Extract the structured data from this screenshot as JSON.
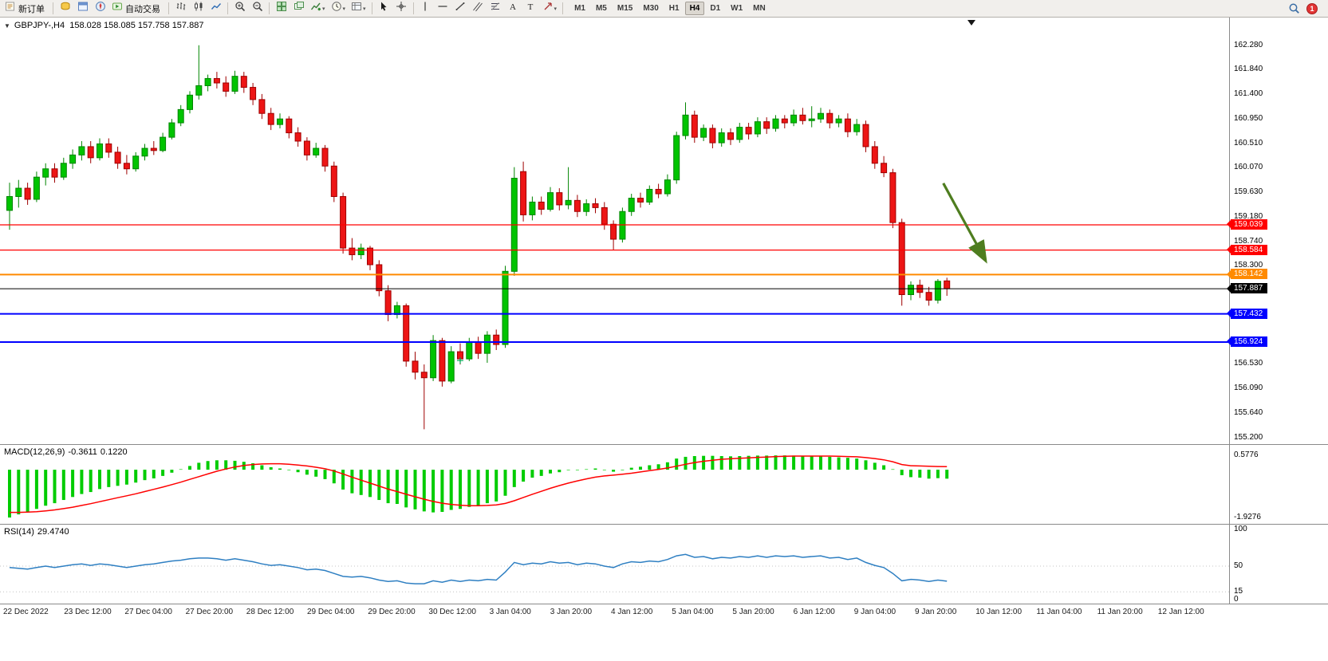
{
  "toolbar": {
    "new_order_label": "新订单",
    "autotrading_label": "自动交易",
    "timeframes": [
      "M1",
      "M5",
      "M15",
      "M30",
      "H1",
      "H4",
      "D1",
      "W1",
      "MN"
    ],
    "active_timeframe": "H4",
    "notification_badge": "1"
  },
  "chart": {
    "symbol_period": "GBPJPY-,H4",
    "ohlc": "158.028 158.085 157.758 157.887"
  },
  "macd": {
    "label": "MACD(12,26,9)",
    "value_main": "-0.3611",
    "value_signal": "0.1220",
    "axis_max": "0.5776",
    "axis_min": "-1.9276"
  },
  "rsi": {
    "label": "RSI(14)",
    "value": "29.4740",
    "axis_labels": [
      "100",
      "50",
      "15",
      "0"
    ]
  },
  "price_axis": {
    "labels": [
      "162.280",
      "161.840",
      "161.400",
      "160.950",
      "160.510",
      "160.070",
      "159.630",
      "159.180",
      "158.740",
      "158.300",
      "156.530",
      "156.090",
      "155.640",
      "155.200"
    ]
  },
  "time_axis": [
    "22 Dec 2022",
    "23 Dec 12:00",
    "27 Dec 04:00",
    "27 Dec 20:00",
    "28 Dec 12:00",
    "29 Dec 04:00",
    "29 Dec 20:00",
    "30 Dec 12:00",
    "3 Jan 04:00",
    "3 Jan 20:00",
    "4 Jan 12:00",
    "5 Jan 04:00",
    "5 Jan 20:00",
    "6 Jan 12:00",
    "9 Jan 04:00",
    "9 Jan 20:00",
    "10 Jan 12:00",
    "11 Jan 04:00",
    "11 Jan 20:00",
    "12 Jan 12:00"
  ],
  "chart_data": [
    {
      "type": "candlestick",
      "symbol": "GBPJPY-",
      "period": "H4",
      "last_ohlc": {
        "open": 158.028,
        "high": 158.085,
        "low": 157.758,
        "close": 157.887
      },
      "ylim": [
        155.2,
        162.78
      ],
      "colors": {
        "bull": "#00C400",
        "bull_border": "#008500",
        "bear": "#ED1515",
        "bear_border": "#9E0000"
      },
      "candles": [
        [
          159.3,
          159.8,
          158.95,
          159.55
        ],
        [
          159.55,
          159.85,
          159.35,
          159.7
        ],
        [
          159.7,
          159.8,
          159.4,
          159.5
        ],
        [
          159.5,
          160.0,
          159.45,
          159.9
        ],
        [
          159.9,
          160.15,
          159.75,
          160.05
        ],
        [
          160.05,
          160.15,
          159.8,
          159.9
        ],
        [
          159.9,
          160.25,
          159.85,
          160.15
        ],
        [
          160.15,
          160.4,
          160.05,
          160.3
        ],
        [
          160.3,
          160.55,
          160.2,
          160.45
        ],
        [
          160.45,
          160.55,
          160.15,
          160.25
        ],
        [
          160.25,
          160.6,
          160.2,
          160.5
        ],
        [
          160.5,
          160.6,
          160.25,
          160.35
        ],
        [
          160.35,
          160.45,
          160.05,
          160.15
        ],
        [
          160.15,
          160.3,
          159.95,
          160.05
        ],
        [
          160.05,
          160.35,
          160.0,
          160.28
        ],
        [
          160.28,
          160.5,
          160.2,
          160.42
        ],
        [
          160.42,
          160.55,
          160.3,
          160.38
        ],
        [
          160.38,
          160.7,
          160.35,
          160.62
        ],
        [
          160.62,
          160.95,
          160.58,
          160.88
        ],
        [
          160.88,
          161.2,
          160.82,
          161.12
        ],
        [
          161.12,
          161.45,
          161.05,
          161.38
        ],
        [
          161.38,
          162.28,
          161.3,
          161.55
        ],
        [
          161.55,
          161.75,
          161.45,
          161.68
        ],
        [
          161.68,
          161.8,
          161.5,
          161.6
        ],
        [
          161.6,
          161.72,
          161.35,
          161.45
        ],
        [
          161.45,
          161.82,
          161.4,
          161.72
        ],
        [
          161.72,
          161.8,
          161.42,
          161.52
        ],
        [
          161.52,
          161.6,
          161.2,
          161.3
        ],
        [
          161.3,
          161.4,
          160.95,
          161.05
        ],
        [
          161.05,
          161.15,
          160.75,
          160.85
        ],
        [
          160.85,
          161.05,
          160.78,
          160.95
        ],
        [
          160.95,
          161.0,
          160.6,
          160.7
        ],
        [
          160.7,
          160.8,
          160.45,
          160.55
        ],
        [
          160.55,
          160.62,
          160.2,
          160.3
        ],
        [
          160.3,
          160.52,
          160.25,
          160.42
        ],
        [
          160.42,
          160.48,
          160.0,
          160.1
        ],
        [
          160.1,
          160.18,
          159.45,
          159.55
        ],
        [
          159.55,
          159.62,
          158.52,
          158.62
        ],
        [
          158.62,
          158.8,
          158.4,
          158.5
        ],
        [
          158.5,
          158.7,
          158.42,
          158.62
        ],
        [
          158.62,
          158.66,
          158.22,
          158.32
        ],
        [
          158.32,
          158.4,
          157.75,
          157.85
        ],
        [
          157.85,
          157.95,
          157.3,
          157.42
        ],
        [
          157.42,
          157.65,
          157.35,
          157.58
        ],
        [
          157.58,
          157.62,
          156.48,
          156.58
        ],
        [
          156.58,
          156.75,
          156.25,
          156.38
        ],
        [
          156.38,
          156.52,
          155.35,
          156.28
        ],
        [
          156.28,
          157.05,
          156.22,
          156.95
        ],
        [
          156.95,
          157.0,
          156.12,
          156.22
        ],
        [
          156.22,
          156.85,
          156.18,
          156.75
        ],
        [
          156.75,
          156.9,
          156.52,
          156.62
        ],
        [
          156.62,
          157.0,
          156.58,
          156.92
        ],
        [
          156.92,
          157.02,
          156.62,
          156.72
        ],
        [
          156.72,
          157.12,
          156.55,
          157.05
        ],
        [
          157.05,
          157.15,
          156.78,
          156.88
        ],
        [
          156.88,
          158.3,
          156.82,
          158.2
        ],
        [
          158.2,
          160.08,
          158.12,
          159.88
        ],
        [
          160.0,
          160.18,
          159.1,
          159.22
        ],
        [
          159.22,
          159.55,
          159.12,
          159.45
        ],
        [
          159.45,
          159.55,
          159.22,
          159.32
        ],
        [
          159.32,
          159.72,
          159.28,
          159.62
        ],
        [
          159.62,
          159.7,
          159.3,
          159.4
        ],
        [
          159.4,
          160.08,
          159.32,
          159.48
        ],
        [
          159.48,
          159.58,
          159.18,
          159.28
        ],
        [
          159.28,
          159.5,
          159.2,
          159.42
        ],
        [
          159.42,
          159.52,
          159.25,
          159.35
        ],
        [
          159.35,
          159.45,
          158.95,
          159.05
        ],
        [
          159.05,
          159.12,
          158.58,
          158.78
        ],
        [
          158.78,
          159.35,
          158.72,
          159.28
        ],
        [
          159.28,
          159.6,
          159.2,
          159.52
        ],
        [
          159.52,
          159.62,
          159.35,
          159.45
        ],
        [
          159.45,
          159.75,
          159.4,
          159.68
        ],
        [
          159.68,
          159.78,
          159.52,
          159.6
        ],
        [
          159.6,
          159.95,
          159.55,
          159.85
        ],
        [
          159.85,
          160.72,
          159.78,
          160.65
        ],
        [
          160.65,
          161.25,
          160.58,
          161.02
        ],
        [
          161.02,
          161.1,
          160.52,
          160.62
        ],
        [
          160.62,
          160.85,
          160.55,
          160.78
        ],
        [
          160.78,
          160.85,
          160.42,
          160.52
        ],
        [
          160.52,
          160.78,
          160.45,
          160.7
        ],
        [
          160.7,
          160.78,
          160.48,
          160.58
        ],
        [
          160.58,
          160.88,
          160.52,
          160.8
        ],
        [
          160.8,
          160.88,
          160.58,
          160.68
        ],
        [
          160.68,
          160.98,
          160.62,
          160.9
        ],
        [
          160.9,
          160.98,
          160.68,
          160.78
        ],
        [
          160.78,
          161.02,
          160.72,
          160.95
        ],
        [
          160.95,
          161.02,
          160.78,
          160.88
        ],
        [
          160.88,
          161.12,
          160.82,
          161.02
        ],
        [
          161.02,
          161.15,
          160.85,
          160.92
        ],
        [
          160.92,
          161.18,
          160.8,
          160.95
        ],
        [
          160.95,
          161.15,
          160.88,
          161.05
        ],
        [
          161.05,
          161.12,
          160.78,
          160.88
        ],
        [
          160.88,
          161.02,
          160.8,
          160.95
        ],
        [
          160.95,
          161.05,
          160.62,
          160.72
        ],
        [
          160.72,
          160.95,
          160.65,
          160.85
        ],
        [
          160.85,
          160.92,
          160.35,
          160.45
        ],
        [
          160.45,
          160.55,
          160.05,
          160.15
        ],
        [
          160.15,
          160.28,
          159.9,
          159.98
        ],
        [
          159.98,
          160.05,
          158.98,
          159.08
        ],
        [
          159.08,
          159.15,
          157.58,
          157.78
        ],
        [
          157.78,
          158.02,
          157.68,
          157.95
        ],
        [
          157.95,
          158.05,
          157.72,
          157.82
        ],
        [
          157.82,
          157.92,
          157.58,
          157.68
        ],
        [
          157.68,
          158.06,
          157.62,
          158.02
        ],
        [
          158.028,
          158.085,
          157.758,
          157.887
        ]
      ],
      "hlines": [
        {
          "price": 159.039,
          "color": "#FF0000",
          "lw": 1.3
        },
        {
          "price": 158.584,
          "color": "#FF0000",
          "lw": 1.3
        },
        {
          "price": 158.142,
          "color": "#FF8A00",
          "lw": 2
        },
        {
          "price": 157.887,
          "color": "#000000",
          "lw": 1
        },
        {
          "price": 157.432,
          "color": "#0000FF",
          "lw": 2
        },
        {
          "price": 156.924,
          "color": "#0000FF",
          "lw": 2
        }
      ],
      "arrow": {
        "from_bar": 103.6,
        "from_price": 159.79,
        "to_bar": 108.2,
        "to_price": 158.42,
        "color": "#4E7D1F"
      },
      "marker": {
        "bar": 50,
        "price": 156.59,
        "color": "#00A550"
      }
    },
    {
      "type": "bar",
      "name": "MACD(12,26,9)",
      "ylim": [
        -1.9276,
        0.5776
      ],
      "colors": {
        "histogram": "#00CC00",
        "signal": "#FF0000"
      },
      "values": [
        -1.9276,
        -1.8,
        -1.7,
        -1.58,
        -1.45,
        -1.35,
        -1.22,
        -1.1,
        -0.98,
        -0.9,
        -0.78,
        -0.7,
        -0.65,
        -0.6,
        -0.52,
        -0.42,
        -0.35,
        -0.25,
        -0.12,
        0.02,
        0.15,
        0.28,
        0.35,
        0.38,
        0.38,
        0.36,
        0.32,
        0.26,
        0.18,
        0.1,
        0.05,
        -0.02,
        -0.1,
        -0.2,
        -0.28,
        -0.38,
        -0.55,
        -0.8,
        -0.95,
        -1.02,
        -1.1,
        -1.22,
        -1.35,
        -1.38,
        -1.52,
        -1.6,
        -1.68,
        -1.72,
        -1.7,
        -1.62,
        -1.58,
        -1.5,
        -1.45,
        -1.35,
        -1.28,
        -1.05,
        -0.7,
        -0.48,
        -0.32,
        -0.25,
        -0.15,
        -0.1,
        -0.02,
        -0.02,
        0.02,
        0.05,
        -0.02,
        -0.08,
        -0.02,
        0.08,
        0.12,
        0.18,
        0.22,
        0.3,
        0.45,
        0.52,
        0.55,
        0.56,
        0.56,
        0.55,
        0.54,
        0.55,
        0.56,
        0.57,
        0.57,
        0.5776,
        0.5776,
        0.57,
        0.56,
        0.55,
        0.55,
        0.52,
        0.5,
        0.48,
        0.45,
        0.38,
        0.28,
        0.18,
        0.02,
        -0.22,
        -0.3,
        -0.32,
        -0.36,
        -0.34,
        -0.3611
      ],
      "signal": [
        -1.72,
        -1.72,
        -1.71,
        -1.69,
        -1.66,
        -1.62,
        -1.57,
        -1.51,
        -1.44,
        -1.37,
        -1.29,
        -1.21,
        -1.13,
        -1.05,
        -0.97,
        -0.88,
        -0.79,
        -0.7,
        -0.6,
        -0.5,
        -0.39,
        -0.28,
        -0.17,
        -0.06,
        0.03,
        0.11,
        0.17,
        0.21,
        0.23,
        0.24,
        0.24,
        0.22,
        0.19,
        0.15,
        0.1,
        0.04,
        -0.05,
        -0.17,
        -0.3,
        -0.42,
        -0.54,
        -0.66,
        -0.78,
        -0.88,
        -0.99,
        -1.09,
        -1.19,
        -1.28,
        -1.35,
        -1.4,
        -1.43,
        -1.45,
        -1.45,
        -1.44,
        -1.42,
        -1.36,
        -1.25,
        -1.12,
        -0.99,
        -0.87,
        -0.75,
        -0.64,
        -0.54,
        -0.45,
        -0.37,
        -0.3,
        -0.25,
        -0.22,
        -0.18,
        -0.14,
        -0.09,
        -0.04,
        0.01,
        0.07,
        0.14,
        0.22,
        0.29,
        0.34,
        0.38,
        0.42,
        0.44,
        0.46,
        0.48,
        0.5,
        0.51,
        0.53,
        0.54,
        0.55,
        0.55,
        0.55,
        0.55,
        0.55,
        0.54,
        0.53,
        0.52,
        0.49,
        0.45,
        0.4,
        0.32,
        0.21,
        0.16,
        0.15,
        0.14,
        0.13,
        0.122
      ]
    },
    {
      "type": "line",
      "name": "RSI(14)",
      "ylim": [
        0,
        100
      ],
      "levels": [
        50,
        15
      ],
      "color": "#2E7FC2",
      "values": [
        48,
        47,
        46,
        48,
        50,
        48,
        50,
        52,
        53,
        51,
        53,
        52,
        50,
        48,
        50,
        52,
        53,
        55,
        57,
        58,
        60,
        61,
        61,
        60,
        58,
        60,
        58,
        56,
        53,
        51,
        52,
        50,
        48,
        45,
        46,
        44,
        40,
        36,
        35,
        36,
        34,
        31,
        29,
        30,
        27,
        26,
        26,
        30,
        28,
        31,
        29,
        31,
        30,
        32,
        31,
        42,
        55,
        52,
        54,
        53,
        56,
        54,
        55,
        52,
        54,
        53,
        50,
        48,
        53,
        56,
        55,
        57,
        56,
        59,
        64,
        66,
        62,
        63,
        60,
        62,
        61,
        63,
        62,
        64,
        62,
        64,
        63,
        64,
        62,
        63,
        64,
        61,
        62,
        59,
        61,
        55,
        51,
        48,
        40,
        30,
        32,
        31,
        29,
        31,
        29.474
      ]
    }
  ]
}
